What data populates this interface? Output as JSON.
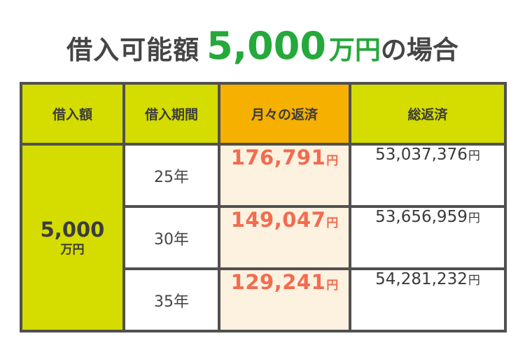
{
  "title": {
    "prefix": "借入可能額",
    "amount": "5,000",
    "unit": "万円",
    "suffix": "の場合"
  },
  "table": {
    "headers": [
      "借入額",
      "借入期間",
      "月々の返済",
      "総返済"
    ],
    "loan_amount": "5,000",
    "loan_unit": "万円",
    "yen": "円",
    "rows": [
      {
        "term": "25年",
        "monthly": "176,791",
        "total": "53,037,376"
      },
      {
        "term": "30年",
        "monthly": "149,047",
        "total": "53,656,959"
      },
      {
        "term": "35年",
        "monthly": "129,241",
        "total": "54,281,232"
      }
    ]
  },
  "colors": {
    "title_accent": "#24a93a",
    "header_lime": "#d4dc00",
    "header_orange": "#f5b000",
    "monthly_value": "#f26c4f",
    "monthly_column_bg": "#fdf1e0",
    "grid_lines": "#505050"
  }
}
